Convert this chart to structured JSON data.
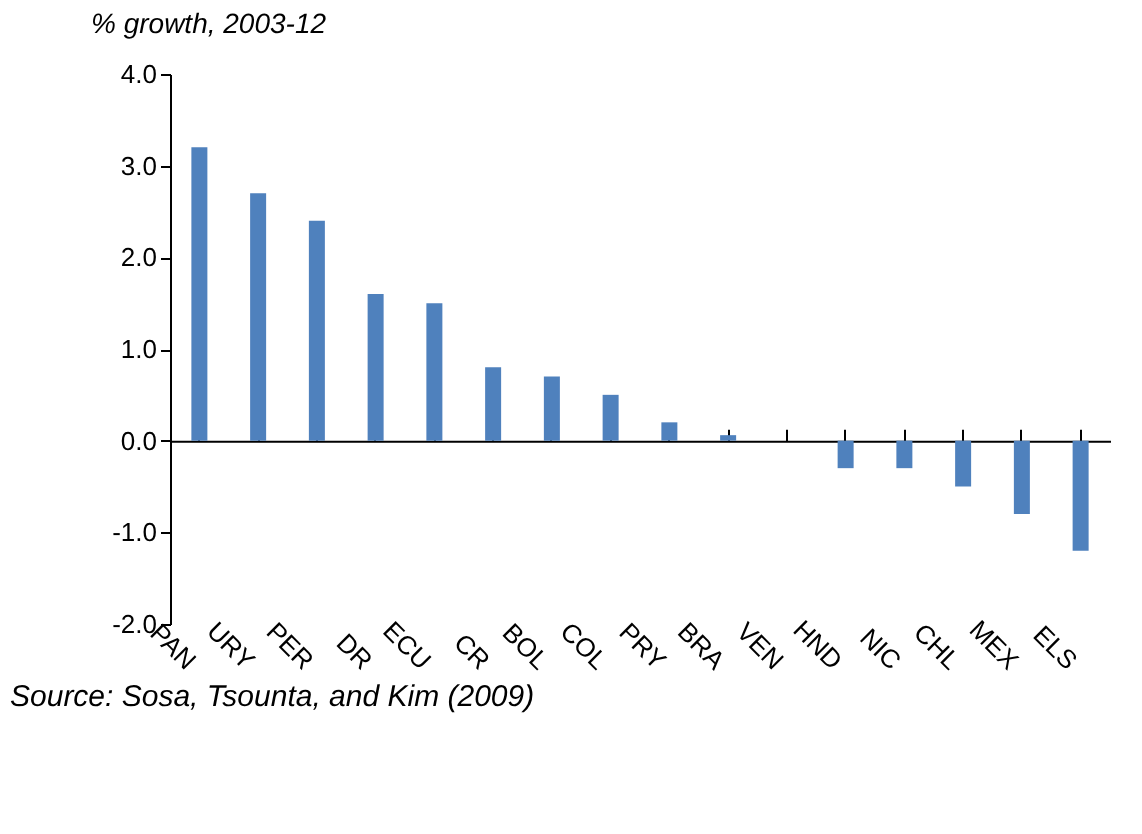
{
  "chart_data": {
    "type": "bar",
    "ylabel": "% growth, 2003-12",
    "categories": [
      "PAN",
      "URY",
      "PER",
      "DR",
      "ECU",
      "CR",
      "BOL",
      "COL",
      "PRY",
      "BRA",
      "VEN",
      "HND",
      "NIC",
      "CHL",
      "MEX",
      "ELS"
    ],
    "values": [
      3.2,
      2.7,
      2.4,
      1.6,
      1.5,
      0.8,
      0.7,
      0.5,
      0.2,
      0.06,
      0,
      -0.3,
      -0.3,
      -0.5,
      -0.8,
      -1.2
    ],
    "color": "#4f81bd",
    "ylim": [
      -2,
      4
    ],
    "yticks": [
      {
        "value": -2,
        "label": "-2.0"
      },
      {
        "value": -1,
        "label": "-1.0"
      },
      {
        "value": 0,
        "label": "0.0"
      },
      {
        "value": 1,
        "label": "1.0"
      },
      {
        "value": 2,
        "label": "2.0"
      },
      {
        "value": 3,
        "label": "3.0"
      },
      {
        "value": 4,
        "label": "4.0"
      }
    ],
    "annotations": [
      "Source:  Sosa, Tsounta, and Kim (2009)"
    ]
  }
}
